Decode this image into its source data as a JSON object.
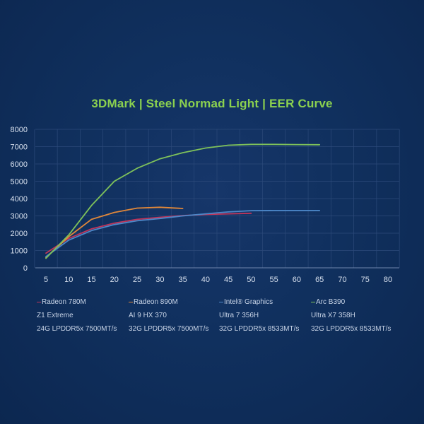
{
  "chart_data": {
    "type": "line",
    "title": "3DMark | Steel Normad Light | EER Curve",
    "xlabel": "",
    "ylabel": "",
    "xlim": [
      5,
      80
    ],
    "ylim": [
      0,
      8000
    ],
    "x_ticks": [
      5,
      10,
      15,
      20,
      25,
      30,
      35,
      40,
      45,
      50,
      55,
      60,
      65,
      70,
      75,
      80
    ],
    "y_ticks": [
      0,
      1000,
      2000,
      3000,
      4000,
      5000,
      6000,
      7000,
      8000
    ],
    "grid": "both",
    "legend_position": "bottom",
    "series": [
      {
        "name": "Radeon 780M",
        "details": [
          "Z1 Extreme",
          "24G LPDDR5x 7500MT/s"
        ],
        "color": "#c0355a",
        "x": [
          5,
          10,
          15,
          20,
          25,
          30,
          35,
          40,
          45,
          50
        ],
        "y": [
          850,
          1700,
          2250,
          2580,
          2800,
          2920,
          3020,
          3080,
          3120,
          3150
        ]
      },
      {
        "name": "Radeon 890M",
        "details": [
          "AI 9 HX 370",
          "32G LPDDR5x 7500MT/s"
        ],
        "color": "#e0873a",
        "x": [
          5,
          10,
          15,
          20,
          25,
          30,
          35
        ],
        "y": [
          600,
          1800,
          2800,
          3200,
          3450,
          3500,
          3430
        ]
      },
      {
        "name": "Intel® Graphics",
        "details": [
          "Ultra 7 356H",
          "32G LPDDR5x 8533MT/s"
        ],
        "color": "#4d88c9",
        "x": [
          5,
          10,
          15,
          20,
          25,
          30,
          35,
          40,
          45,
          50,
          55,
          60,
          65
        ],
        "y": [
          650,
          1600,
          2150,
          2500,
          2720,
          2850,
          3000,
          3120,
          3230,
          3300,
          3310,
          3310,
          3310
        ]
      },
      {
        "name": "Arc B390",
        "details": [
          "Ultra X7 358H",
          "32G LPDDR5x 8533MT/s"
        ],
        "color": "#7fc25a",
        "x": [
          5,
          10,
          15,
          20,
          25,
          30,
          35,
          40,
          45,
          50,
          55,
          60,
          65
        ],
        "y": [
          550,
          1900,
          3600,
          5000,
          5750,
          6300,
          6650,
          6920,
          7080,
          7130,
          7130,
          7120,
          7110
        ]
      }
    ]
  }
}
